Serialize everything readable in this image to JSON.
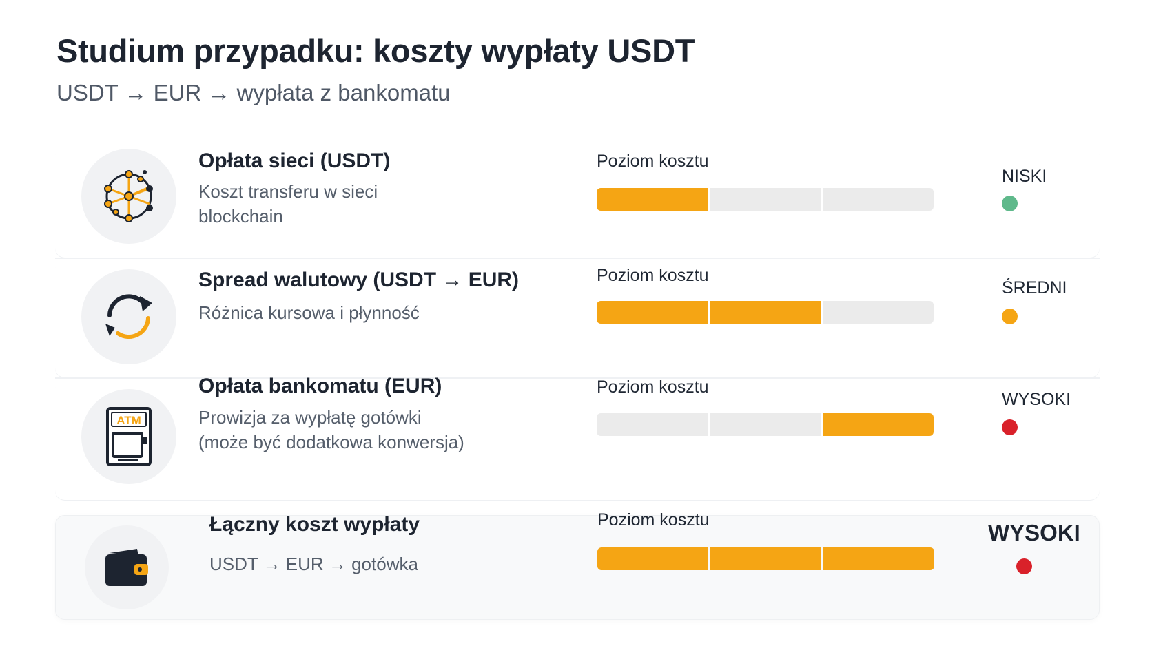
{
  "header": {
    "title": "Studium przypadku: koszty wypłaty USDT",
    "subtitle": "USDT → EUR → wypłata z bankomatu"
  },
  "rows": [
    {
      "icon": "network-icon",
      "title": "Opłata sieci (USDT)",
      "desc_lines": [
        "Koszt transferu w sieci",
        "blockchain"
      ],
      "bar_label": "Poziom kosztu",
      "level_filled": [
        true,
        false,
        false
      ],
      "level_label": "NISKI",
      "dot_color": "#5fb98b"
    },
    {
      "icon": "exchange-arrows-icon",
      "title": "Spread walutowy (USDT → EUR)",
      "desc_lines": [
        "Różnica kursowa i płynność"
      ],
      "bar_label": "Poziom kosztu",
      "level_filled": [
        true,
        true,
        false
      ],
      "level_label": "ŚREDNI",
      "dot_color": "#f5a514"
    },
    {
      "icon": "atm-icon",
      "icon_text": "ATM",
      "title": "Opłata bankomatu (EUR)",
      "desc_lines": [
        "Prowizja za wypłatę gotówki",
        "(może być dodatkowa konwersja)"
      ],
      "bar_label": "Poziom kosztu",
      "level_filled": [
        false,
        false,
        true
      ],
      "level_label": "WYSOKI",
      "dot_color": "#d9212a"
    }
  ],
  "total": {
    "icon": "wallet-icon",
    "title": "Łączny koszt wypłaty",
    "desc": "USDT → EUR → gotówka",
    "bar_label": "Poziom kosztu",
    "level_filled": [
      true,
      true,
      true
    ],
    "level_label": "WYSOKI",
    "dot_color": "#d9212a"
  }
}
